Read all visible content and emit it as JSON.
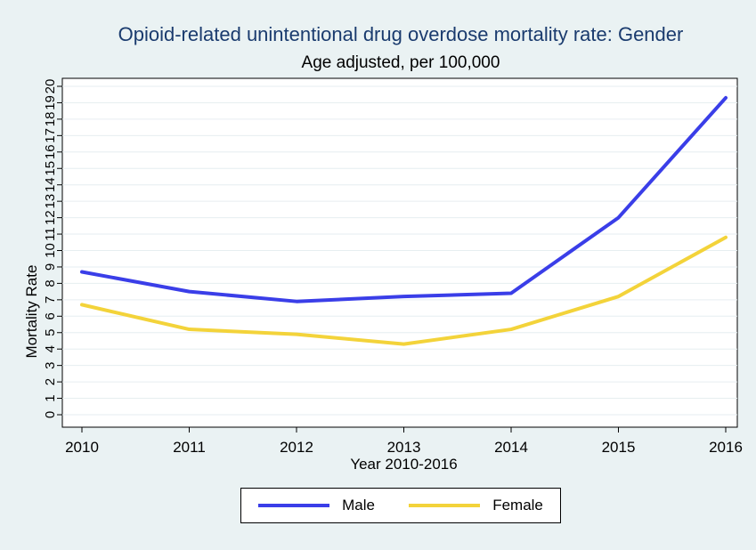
{
  "chart_data": {
    "type": "line",
    "title": "Opioid-related unintentional drug overdose mortality rate: Gender",
    "subtitle": "Age adjusted, per 100,000",
    "xlabel": "Year 2010-2016",
    "ylabel": "Mortality Rate",
    "x": [
      "2010",
      "2011",
      "2012",
      "2013",
      "2014",
      "2015",
      "2016"
    ],
    "yticks": [
      "0",
      "1",
      "2",
      "3",
      "4",
      "5",
      "6",
      "7",
      "8",
      "9",
      "10",
      "11",
      "12",
      "13",
      "14",
      "15",
      "16",
      "17",
      "18",
      "19",
      "20"
    ],
    "ylim": [
      0,
      20
    ],
    "grid": true,
    "legend_position": "bottom",
    "series": [
      {
        "name": "Male",
        "color": "#3a3ee8",
        "values": [
          8.7,
          7.5,
          6.9,
          7.2,
          7.4,
          12.0,
          19.3
        ]
      },
      {
        "name": "Female",
        "color": "#f3d33a",
        "values": [
          6.7,
          5.2,
          4.9,
          4.3,
          5.2,
          7.2,
          10.8
        ]
      }
    ]
  }
}
